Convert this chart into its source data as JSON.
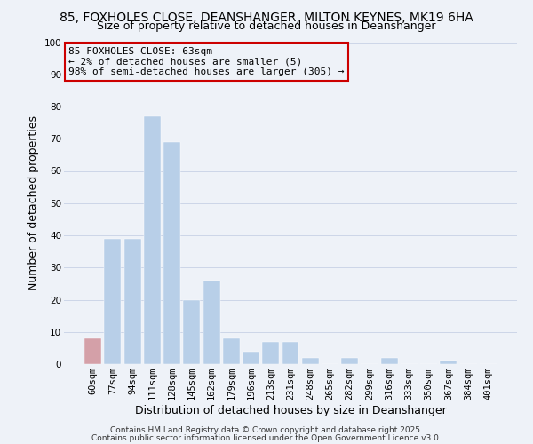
{
  "title": "85, FOXHOLES CLOSE, DEANSHANGER, MILTON KEYNES, MK19 6HA",
  "subtitle": "Size of property relative to detached houses in Deanshanger",
  "xlabel": "Distribution of detached houses by size in Deanshanger",
  "ylabel": "Number of detached properties",
  "bar_labels": [
    "60sqm",
    "77sqm",
    "94sqm",
    "111sqm",
    "128sqm",
    "145sqm",
    "162sqm",
    "179sqm",
    "196sqm",
    "213sqm",
    "231sqm",
    "248sqm",
    "265sqm",
    "282sqm",
    "299sqm",
    "316sqm",
    "333sqm",
    "350sqm",
    "367sqm",
    "384sqm",
    "401sqm"
  ],
  "bar_values": [
    8,
    39,
    39,
    77,
    69,
    20,
    26,
    8,
    4,
    7,
    7,
    2,
    0,
    2,
    0,
    2,
    0,
    0,
    1,
    0,
    0
  ],
  "bar_color": "#b8cfe8",
  "highlight_bar_index": 0,
  "highlight_bar_color": "#d4a0a8",
  "ylim": [
    0,
    100
  ],
  "yticks": [
    0,
    10,
    20,
    30,
    40,
    50,
    60,
    70,
    80,
    90,
    100
  ],
  "annotation_line1": "85 FOXHOLES CLOSE: 63sqm",
  "annotation_line2": "← 2% of detached houses are smaller (5)",
  "annotation_line3": "98% of semi-detached houses are larger (305) →",
  "box_edge_color": "#cc0000",
  "footer_line1": "Contains HM Land Registry data © Crown copyright and database right 2025.",
  "footer_line2": "Contains public sector information licensed under the Open Government Licence v3.0.",
  "grid_color": "#ccd6e8",
  "background_color": "#eef2f8",
  "title_fontsize": 10,
  "subtitle_fontsize": 9,
  "axis_label_fontsize": 9,
  "tick_fontsize": 7.5,
  "annotation_fontsize": 8,
  "footer_fontsize": 6.5
}
